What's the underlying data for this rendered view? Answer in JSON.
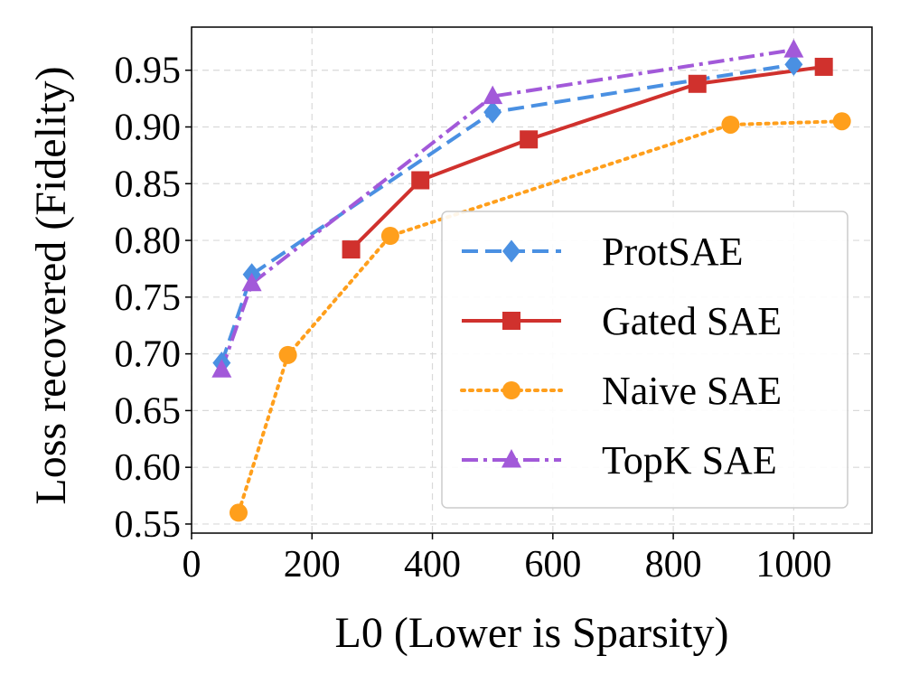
{
  "chart_data": {
    "type": "line",
    "title": "",
    "xlabel": "L0 (Lower is Sparsity)",
    "ylabel": "Loss recovered (Fidelity)",
    "xlim": [
      0,
      1130
    ],
    "ylim": [
      0.542,
      0.988
    ],
    "xticks": [
      0,
      200,
      400,
      600,
      800,
      1000
    ],
    "xtick_labels": [
      "0",
      "200",
      "400",
      "600",
      "800",
      "1000"
    ],
    "yticks": [
      0.55,
      0.6,
      0.65,
      0.7,
      0.75,
      0.8,
      0.85,
      0.9,
      0.95
    ],
    "ytick_labels": [
      "0.55",
      "0.60",
      "0.65",
      "0.70",
      "0.75",
      "0.80",
      "0.85",
      "0.90",
      "0.95"
    ],
    "grid": true,
    "legend_position": "lower-right",
    "series": [
      {
        "name": "ProtSAE",
        "color": "#4a90e2",
        "line_style": "dashed",
        "marker": "diamond",
        "x": [
          50,
          100,
          500,
          1000
        ],
        "y": [
          0.692,
          0.77,
          0.913,
          0.955
        ]
      },
      {
        "name": "Gated SAE",
        "color": "#d0312d",
        "line_style": "solid",
        "marker": "square",
        "x": [
          265,
          380,
          560,
          840,
          1050
        ],
        "y": [
          0.792,
          0.853,
          0.889,
          0.938,
          0.953
        ]
      },
      {
        "name": "Naive SAE",
        "color": "#ff9f1c",
        "line_style": "dotted",
        "marker": "circle",
        "x": [
          78,
          160,
          330,
          895,
          1080
        ],
        "y": [
          0.56,
          0.699,
          0.804,
          0.902,
          0.905
        ]
      },
      {
        "name": "TopK SAE",
        "color": "#a259d9",
        "line_style": "dashdot",
        "marker": "triangle",
        "x": [
          50,
          100,
          500,
          1000
        ],
        "y": [
          0.686,
          0.762,
          0.927,
          0.968
        ]
      }
    ]
  }
}
